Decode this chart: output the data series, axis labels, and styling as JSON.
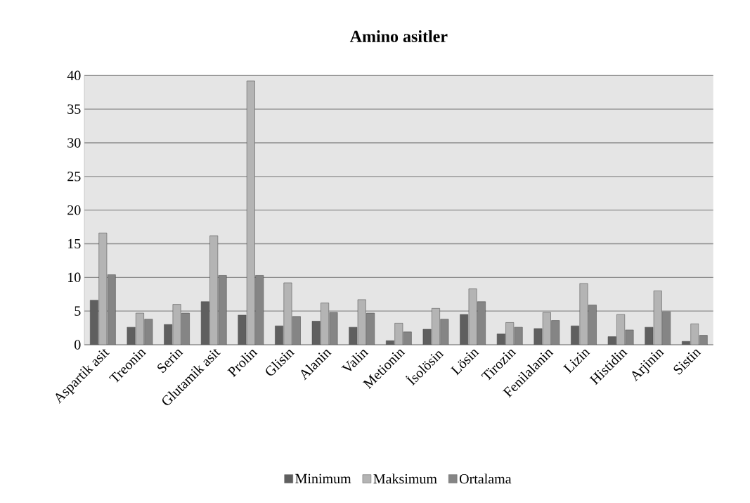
{
  "chart_data": {
    "type": "bar",
    "title": "Amino asitler",
    "categories": [
      "Aspartik asit",
      "Treonin",
      "Serin",
      "Glutamik asit",
      "Prolin",
      "Glisin",
      "Alanin",
      "Valin",
      "Metionin",
      "İsolösin",
      "Lösin",
      "Tirozin",
      "Fenilalanin",
      "Lizin",
      "Histidin",
      "Arjinin",
      "Sistin"
    ],
    "series": [
      {
        "name": "Minimum",
        "color": "#5f5f5f",
        "values": [
          6.6,
          2.6,
          3.0,
          6.4,
          4.4,
          2.8,
          3.5,
          2.6,
          0.6,
          2.3,
          4.5,
          1.6,
          2.4,
          2.8,
          1.2,
          2.6,
          0.5
        ]
      },
      {
        "name": "Maksimum",
        "color": "#b4b4b4",
        "values": [
          16.6,
          4.7,
          6.0,
          16.2,
          39.2,
          9.2,
          6.2,
          6.7,
          3.2,
          5.4,
          8.3,
          3.3,
          4.8,
          9.1,
          4.5,
          8.0,
          3.1
        ]
      },
      {
        "name": "Ortalama",
        "color": "#858585",
        "values": [
          10.4,
          3.8,
          4.7,
          10.3,
          10.3,
          4.2,
          4.8,
          4.7,
          1.9,
          3.8,
          6.4,
          2.6,
          3.6,
          5.9,
          2.2,
          4.9,
          1.4
        ]
      }
    ],
    "ylim": [
      0,
      40
    ],
    "yticks": [
      0,
      5,
      10,
      15,
      20,
      25,
      30,
      35,
      40
    ],
    "grid": "y",
    "legend": "bottom"
  }
}
